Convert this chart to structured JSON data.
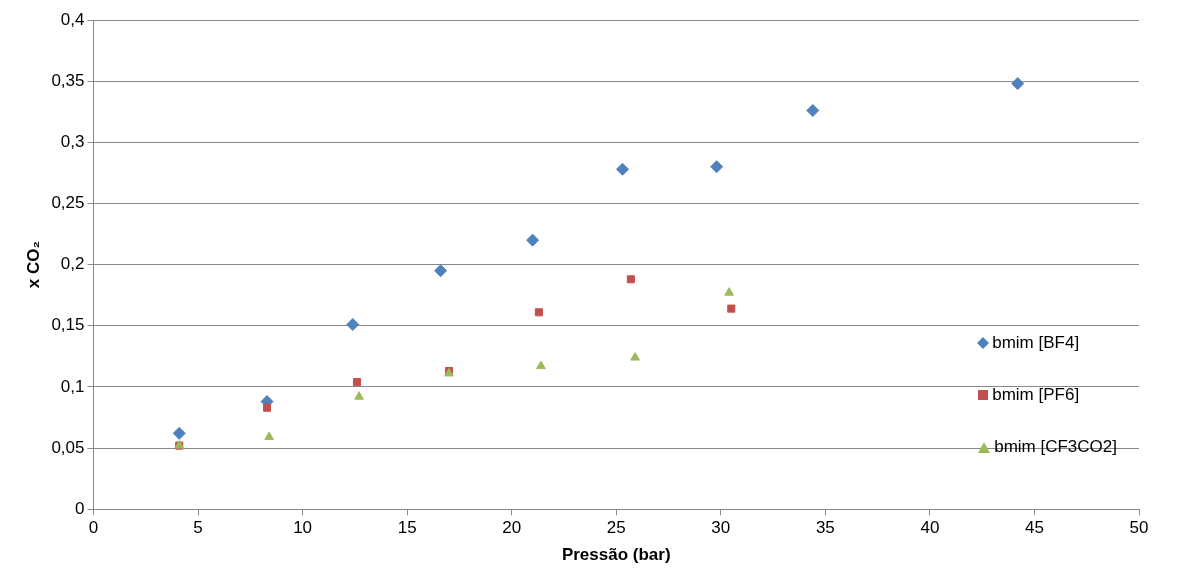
{
  "chart_data": {
    "type": "scatter",
    "xlabel": "Pressão (bar)",
    "ylabel": "x CO₂",
    "xlim": [
      0,
      50
    ],
    "xticks": [
      0,
      5,
      10,
      15,
      20,
      25,
      30,
      35,
      40,
      45,
      50
    ],
    "ylim": [
      0,
      0.4
    ],
    "yticks": [
      {
        "value": 0,
        "label": "0"
      },
      {
        "value": 0.05,
        "label": "0,05"
      },
      {
        "value": 0.1,
        "label": "0,1"
      },
      {
        "value": 0.15,
        "label": "0,15"
      },
      {
        "value": 0.2,
        "label": "0,2"
      },
      {
        "value": 0.25,
        "label": "0,25"
      },
      {
        "value": 0.3,
        "label": "0,3"
      },
      {
        "value": 0.35,
        "label": "0,35"
      },
      {
        "value": 0.4,
        "label": "0,4"
      }
    ],
    "grid": "y",
    "legend": "right",
    "series": [
      {
        "name": "bmim [BF4]",
        "color": "#4f81bd",
        "marker": "diamond",
        "x": [
          4.1,
          8.3,
          12.4,
          16.6,
          21.0,
          25.3,
          29.8,
          34.4,
          44.2
        ],
        "values": [
          0.062,
          0.088,
          0.151,
          0.195,
          0.22,
          0.278,
          0.28,
          0.326,
          0.348
        ]
      },
      {
        "name": "bmim [PF6]",
        "color": "#c0504d",
        "marker": "square",
        "x": [
          4.1,
          8.3,
          12.6,
          17.0,
          21.3,
          25.7,
          30.5
        ],
        "values": [
          0.052,
          0.083,
          0.104,
          0.113,
          0.161,
          0.188,
          0.164
        ]
      },
      {
        "name": "bmim [CF3CO2]",
        "color": "#9bbb59",
        "marker": "triangle",
        "x": [
          4.1,
          8.4,
          12.7,
          17.0,
          21.4,
          25.9,
          30.4
        ],
        "values": [
          0.052,
          0.059,
          0.092,
          0.111,
          0.117,
          0.124,
          0.177
        ]
      }
    ]
  }
}
